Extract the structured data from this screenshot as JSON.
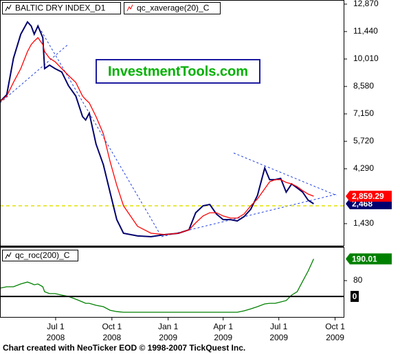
{
  "chart_data": [
    {
      "type": "line",
      "annotations": [
        "InvestmentTools.com"
      ],
      "x": [
        0,
        11,
        22,
        34,
        45,
        51,
        56,
        62,
        70,
        73,
        81,
        90,
        101,
        112,
        124,
        135,
        140,
        146,
        157,
        169,
        180,
        191,
        202,
        225,
        247,
        270,
        292,
        309,
        320,
        332,
        343,
        354,
        365,
        377,
        388,
        399,
        410,
        421,
        433,
        441,
        450,
        459,
        468,
        477,
        486,
        495,
        504,
        513
      ],
      "xlim": [
        0,
        562
      ],
      "ylim": [
        286,
        13084
      ],
      "yticks": [
        {
          "value": 12870,
          "label": "12,870"
        },
        {
          "value": 11440,
          "label": "11,440"
        },
        {
          "value": 10010,
          "label": "10,010"
        },
        {
          "value": 8580,
          "label": "8,580"
        },
        {
          "value": 7150,
          "label": "7,150"
        },
        {
          "value": 5720,
          "label": "5,720"
        },
        {
          "value": 4290,
          "label": "4,290"
        },
        {
          "value": 1430,
          "label": "1,430"
        }
      ],
      "series": [
        {
          "name": "BALTIC DRY INDEX_D1",
          "color": "#00006e",
          "values": [
            7790,
            8150,
            10050,
            11300,
            11940,
            11730,
            11300,
            11730,
            11120,
            9510,
            9690,
            9510,
            9330,
            8620,
            8080,
            7010,
            6830,
            7190,
            5580,
            4500,
            3070,
            1640,
            930,
            790,
            750,
            860,
            930,
            1110,
            2000,
            2360,
            2430,
            1930,
            1640,
            1640,
            1570,
            1790,
            2180,
            2900,
            4330,
            3720,
            3720,
            3790,
            3070,
            3500,
            3290,
            3070,
            2650,
            2468
          ],
          "value_labels": [
            null,
            null,
            null,
            null,
            null,
            null,
            null,
            null,
            null,
            null,
            null,
            null,
            null,
            null,
            null,
            null,
            null,
            null,
            null,
            null,
            null,
            null,
            null,
            null,
            null,
            null,
            null,
            null,
            null,
            null,
            null,
            null,
            null,
            null,
            null,
            null,
            null,
            null,
            null,
            null,
            null,
            null,
            null,
            null,
            null,
            null,
            null,
            "2,468"
          ]
        },
        {
          "name": "qc_xaverage(20)_C",
          "color": "#ff0000",
          "values": [
            7790,
            8080,
            8790,
            9510,
            10400,
            10760,
            10940,
            11120,
            10760,
            10400,
            10050,
            9870,
            9510,
            9150,
            8790,
            8080,
            7900,
            7720,
            7010,
            6110,
            4680,
            3430,
            2360,
            1290,
            930,
            860,
            930,
            1110,
            1470,
            1830,
            2000,
            2000,
            1830,
            1720,
            1720,
            1930,
            2360,
            2720,
            3250,
            3610,
            3720,
            3720,
            3580,
            3500,
            3360,
            3150,
            2970,
            2859.29
          ],
          "value_labels": [
            null,
            null,
            null,
            null,
            null,
            null,
            null,
            null,
            null,
            null,
            null,
            null,
            null,
            null,
            null,
            null,
            null,
            null,
            null,
            null,
            null,
            null,
            null,
            null,
            null,
            null,
            null,
            null,
            null,
            null,
            null,
            null,
            null,
            null,
            null,
            null,
            null,
            null,
            null,
            null,
            null,
            null,
            null,
            null,
            null,
            null,
            null,
            "2,859.29"
          ]
        }
      ]
    },
    {
      "type": "line",
      "x": [
        0,
        11,
        22,
        34,
        45,
        51,
        56,
        62,
        70,
        73,
        81,
        90,
        101,
        112,
        124,
        135,
        140,
        146,
        157,
        169,
        180,
        191,
        202,
        225,
        247,
        270,
        292,
        309,
        320,
        332,
        343,
        354,
        365,
        377,
        388,
        399,
        410,
        421,
        433,
        441,
        450,
        459,
        468,
        477,
        486,
        495,
        504,
        513
      ],
      "xlim": [
        0,
        562
      ],
      "xticks": [
        {
          "value": 91,
          "label": "Jul 1"
        },
        {
          "value": 183,
          "label": "Oct 1"
        },
        {
          "value": 275,
          "label": "Jan 1"
        },
        {
          "value": 365,
          "label": "Apr 1"
        },
        {
          "value": 456,
          "label": "Jul 1"
        },
        {
          "value": 548,
          "label": "Oct 1"
        }
      ],
      "xtick_years": [
        "2008",
        "2008",
        "2009",
        "2009",
        "2009",
        "2009"
      ],
      "ylim": [
        -104,
        247
      ],
      "yticks": [
        80,
        0
      ],
      "series": [
        {
          "name": "qc_roc(200)_C",
          "color": "#008000",
          "values": [
            42,
            49,
            49,
            63,
            73,
            66,
            59,
            63,
            49,
            24,
            14,
            14,
            7,
            0,
            -14,
            -28,
            -35,
            -35,
            -45,
            -52,
            -70,
            -77,
            -80,
            -80,
            -80,
            -80,
            -80,
            -80,
            -80,
            -80,
            -80,
            -80,
            -80,
            -80,
            -80,
            -73,
            -63,
            -52,
            -38,
            -35,
            -35,
            -28,
            -21,
            7,
            24,
            77,
            129,
            190.01
          ]
        }
      ]
    }
  ],
  "footer": "Chart created with NeoTicker EOD © 1998-2007 TickQuest Inc."
}
